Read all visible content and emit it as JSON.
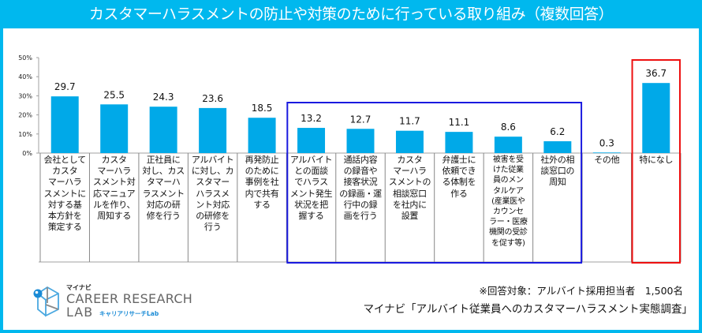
{
  "title": "カスタマーハラスメントの防止や対策のために行っている取り組み（複数回答）",
  "colors": {
    "header": "#00b8ee",
    "bar": "#00a9e8",
    "highlight_blue": "#1a1adf",
    "highlight_red": "#ee1111"
  },
  "chart_data": {
    "type": "bar",
    "title": "カスタマーハラスメントの防止や対策のために行っている取り組み（複数回答）",
    "xlabel": "",
    "ylabel": "",
    "ylim": [
      0,
      50
    ],
    "yticks": [
      "0%",
      "10%",
      "20%",
      "30%",
      "40%",
      "50%"
    ],
    "grid": false,
    "categories": [
      "会社として\nカスタ\nマーハラ\nスメントに\n対する基\n本方針を\n策定する",
      "カスタ\nマーハラ\nスメント対\n応マニュア\nルを作り、\n周知する",
      "正社員に\n対し、カス\nタマーハ\nラスメント\n対応の研\n修を行う",
      "アルバイト\nに対し、カ\nスタマー\nハラスメ\nント対応\nの研修を\n行う",
      "再発防止\nのために\n事例を社\n内で共有\nする",
      "アルバイト\nとの面談\nでハラス\nメント発生\n状況を把\n握する",
      "通話内容\nの録音や\n接客状況\nの録画・運\n行中の録\n画を行う",
      "カスタ\nマーハラ\nスメントの\n相談窓口\nを社内に\n設置",
      "弁護士に\n依頼でき\nる体制を\n作る",
      "被害を受\nけた従業\n員のメン\nタルケア\n(産業医や\nカウンセ\nラー・医療\n機関の受診\nを促す等)",
      "社外の相\n談窓口の\n周知",
      "その他",
      "特になし"
    ],
    "values": [
      29.7,
      25.5,
      24.3,
      23.6,
      18.5,
      13.2,
      12.7,
      11.7,
      11.1,
      8.6,
      6.2,
      0.3,
      36.7
    ],
    "value_labels": [
      "29.7",
      "25.5",
      "24.3",
      "23.6",
      "18.5",
      "13.2",
      "12.7",
      "11.7",
      "11.1",
      "8.6",
      "6.2",
      "0.3",
      "36.7"
    ],
    "highlight_groups": [
      {
        "color": "blue",
        "from_index": 5,
        "to_index": 10
      },
      {
        "color": "red",
        "from_index": 12,
        "to_index": 12
      }
    ]
  },
  "footer": {
    "note": "※回答対象：アルバイト採用担当者　1,500名",
    "source": "マイナビ「アルバイト従業員へのカスタマーハラスメント実態調査」"
  },
  "logo": {
    "brand": "マイナビ",
    "line1": "CAREER RESEARCH",
    "line2": "LAB",
    "kana": "キャリアリサーチLab"
  }
}
